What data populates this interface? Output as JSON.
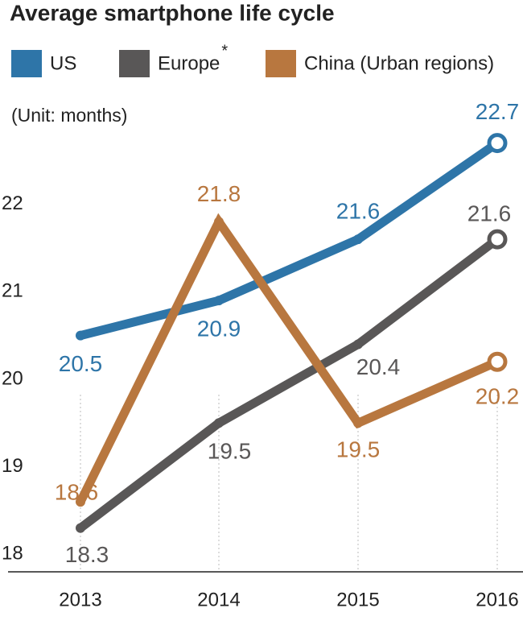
{
  "chart_data": {
    "type": "line",
    "title": "Average smartphone life cycle",
    "unit_label": "(Unit: months)",
    "categories": [
      "2013",
      "2014",
      "2015",
      "2016"
    ],
    "series": [
      {
        "name": "US",
        "color": "#2e75a8",
        "values": [
          20.5,
          20.9,
          21.6,
          22.7
        ]
      },
      {
        "name": "Europe",
        "color": "#595757",
        "values": [
          18.3,
          19.5,
          20.4,
          21.6
        ]
      },
      {
        "name": "China (Urban regions)",
        "color": "#b8773f",
        "values": [
          18.6,
          21.8,
          19.5,
          20.2
        ]
      }
    ],
    "legend_footnote_marker": "*",
    "ylim": [
      17.8,
      23.0
    ],
    "yticks": [
      18,
      19,
      20,
      21,
      22
    ],
    "grid": true
  }
}
